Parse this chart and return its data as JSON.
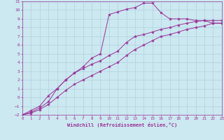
{
  "xlabel": "Windchill (Refroidissement éolien,°C)",
  "x_values": [
    0,
    1,
    2,
    3,
    4,
    5,
    6,
    7,
    8,
    9,
    10,
    11,
    12,
    13,
    14,
    15,
    16,
    17,
    18,
    19,
    20,
    21,
    22,
    23
  ],
  "line_spike": [
    -2,
    -1.7,
    -1.2,
    -0.5,
    1.0,
    2.0,
    2.8,
    3.5,
    4.5,
    5.0,
    9.5,
    9.8,
    10.1,
    10.3,
    10.8,
    10.8,
    9.7,
    9.0,
    9.0,
    9.0,
    8.8,
    8.8,
    8.5,
    8.5
  ],
  "line_upper": [
    -2,
    -1.5,
    -1.0,
    0.2,
    1.0,
    2.0,
    2.8,
    3.3,
    3.8,
    4.2,
    4.8,
    5.3,
    6.3,
    7.0,
    7.2,
    7.5,
    7.8,
    8.0,
    8.3,
    8.5,
    8.7,
    8.8,
    8.8,
    8.8
  ],
  "line_lower": [
    -2,
    -1.8,
    -1.4,
    -0.8,
    0.0,
    0.8,
    1.5,
    2.0,
    2.5,
    3.0,
    3.5,
    4.0,
    4.8,
    5.5,
    6.0,
    6.5,
    7.0,
    7.2,
    7.5,
    7.8,
    8.0,
    8.2,
    8.5,
    8.5
  ],
  "line_color": "#993399",
  "bg_color": "#cce8f0",
  "grid_color": "#aaccdd",
  "ylim": [
    -2,
    11
  ],
  "xlim": [
    0,
    23
  ],
  "yticks": [
    -2,
    -1,
    0,
    1,
    2,
    3,
    4,
    5,
    6,
    7,
    8,
    9,
    10,
    11
  ],
  "xticks": [
    0,
    1,
    2,
    3,
    4,
    5,
    6,
    7,
    8,
    9,
    10,
    11,
    12,
    13,
    14,
    15,
    16,
    17,
    18,
    19,
    20,
    21,
    22,
    23
  ]
}
